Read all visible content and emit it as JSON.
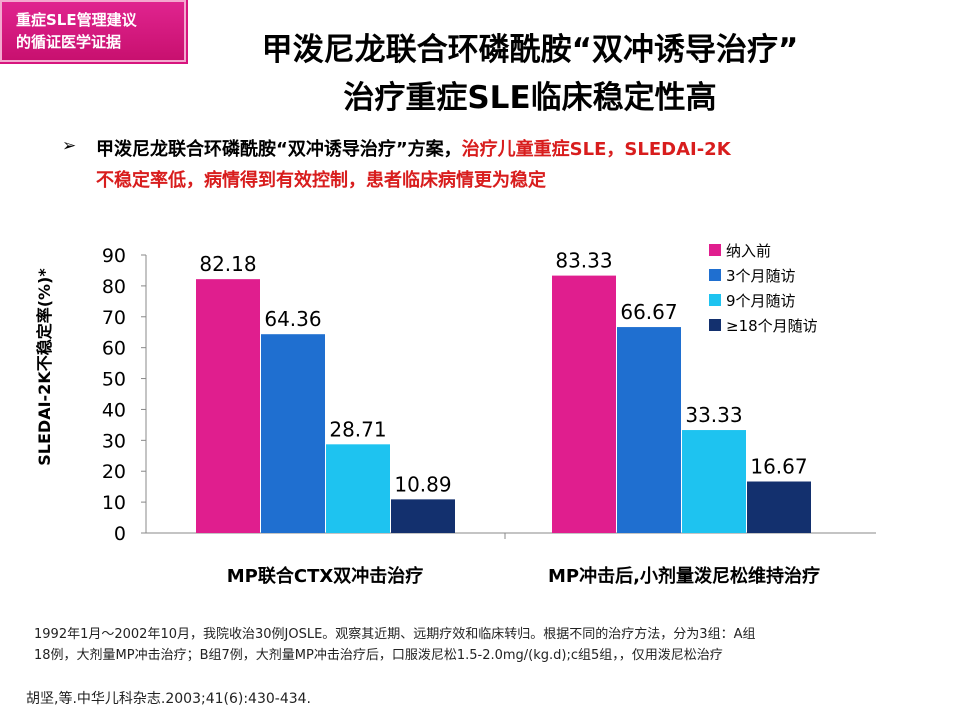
{
  "tag": {
    "line1": "重症SLE管理建议",
    "line2": "的循证医学证据"
  },
  "title": {
    "line1": "甲泼尼龙联合环磷酰胺“双冲诱导治疗”",
    "line2": "治疗重症SLE临床稳定性高"
  },
  "bullet": {
    "part1": "甲泼尼龙联合环磷酰胺“双冲诱导治疗”方案，",
    "part2": "治疗儿童重症SLE，SLEDAI-2K",
    "line2": "不稳定率低，病情得到有效控制，患者临床病情更为稳定"
  },
  "chart_data": {
    "type": "bar",
    "categories": [
      "MP联合CTX双冲击治疗",
      "MP冲击后,小剂量泼尼松维持治疗"
    ],
    "series": [
      {
        "name": "纳入前",
        "values": [
          82.18,
          83.33
        ],
        "color": "#e01e8e"
      },
      {
        "name": "3个月随访",
        "values": [
          64.36,
          66.67
        ],
        "color": "#1f6fd0"
      },
      {
        "name": "9个月随访",
        "values": [
          28.71,
          33.33
        ],
        "color": "#1ec3f0"
      },
      {
        "name": "≥18个月随访",
        "values": [
          10.89,
          16.67
        ],
        "color": "#13306e"
      }
    ],
    "value_labels": [
      [
        "82.18",
        "64.36",
        "28.71",
        "10.89"
      ],
      [
        "83.33",
        "66.67",
        "33.33",
        "16.67"
      ]
    ],
    "ylabel": "SLEDAI-2K不稳定率(%)*",
    "ylim": [
      0,
      90
    ],
    "yticks": [
      "0",
      "10",
      "20",
      "30",
      "40",
      "50",
      "60",
      "70",
      "80",
      "90"
    ],
    "legend_position": "top-right"
  },
  "footnote": {
    "line1": "1992年1月～2002年10月，我院收治30例JOSLE。观察其近期、远期疗效和临床转归。根据不同的治疗方法，分为3组：A组",
    "line2": "18例，大剂量MP冲击治疗；B组7例，大剂量MP冲击治疗后，口服泼尼松1.5-2.0mg/(kg.d);c组5组，，仅用泼尼松治疗"
  },
  "reference": "胡坚,等.中华儿科杂志.2003;41(6):430-434."
}
